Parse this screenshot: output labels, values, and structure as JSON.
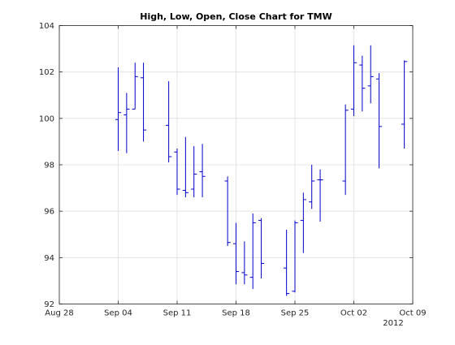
{
  "chart_data": {
    "type": "ohlc",
    "title": "High, Low, Open, Close Chart for TMW",
    "xlabel": "",
    "ylabel": "",
    "x_axis": {
      "type": "date",
      "min": "2012-08-28",
      "max": "2012-10-09",
      "ticks": [
        "2012-08-28",
        "2012-09-04",
        "2012-09-11",
        "2012-09-18",
        "2012-09-25",
        "2012-10-02",
        "2012-10-09"
      ],
      "tick_labels": [
        "Aug 28",
        "Sep 04",
        "Sep 11",
        "Sep 18",
        "Sep 25",
        "Oct 02",
        "Oct 09"
      ],
      "year_label": "2012"
    },
    "y_axis": {
      "min": 92,
      "max": 104,
      "ticks": [
        92,
        94,
        96,
        98,
        100,
        102,
        104
      ],
      "tick_labels": [
        "92",
        "94",
        "96",
        "98",
        "100",
        "102",
        "104"
      ]
    },
    "grid": true,
    "bar_color": "#0000cc",
    "points": [
      {
        "date": "2012-09-04",
        "high": 102.2,
        "low": 98.6,
        "open": 99.95,
        "close": 100.25
      },
      {
        "date": "2012-09-05",
        "high": 101.1,
        "low": 98.5,
        "open": 100.15,
        "close": 100.4
      },
      {
        "date": "2012-09-06",
        "high": 102.4,
        "low": 100.4,
        "open": 100.4,
        "close": 101.8
      },
      {
        "date": "2012-09-07",
        "high": 102.4,
        "low": 99.0,
        "open": 101.75,
        "close": 99.5
      },
      {
        "date": "2012-09-10",
        "high": 101.6,
        "low": 98.1,
        "open": 99.7,
        "close": 98.35
      },
      {
        "date": "2012-09-11",
        "high": 98.7,
        "low": 96.7,
        "open": 98.55,
        "close": 96.95
      },
      {
        "date": "2012-09-12",
        "high": 99.2,
        "low": 96.6,
        "open": 96.9,
        "close": 96.8
      },
      {
        "date": "2012-09-13",
        "high": 98.8,
        "low": 96.6,
        "open": 96.95,
        "close": 97.6
      },
      {
        "date": "2012-09-14",
        "high": 98.9,
        "low": 96.6,
        "open": 97.7,
        "close": 97.5
      },
      {
        "date": "2012-09-17",
        "high": 97.5,
        "low": 94.5,
        "open": 97.3,
        "close": 94.65
      },
      {
        "date": "2012-09-18",
        "high": 95.5,
        "low": 92.85,
        "open": 94.6,
        "close": 93.4
      },
      {
        "date": "2012-09-19",
        "high": 94.7,
        "low": 92.85,
        "open": 93.35,
        "close": 93.25
      },
      {
        "date": "2012-09-20",
        "high": 95.9,
        "low": 92.65,
        "open": 93.15,
        "close": 95.5
      },
      {
        "date": "2012-09-21",
        "high": 95.7,
        "low": 93.1,
        "open": 95.6,
        "close": 93.75
      },
      {
        "date": "2012-09-24",
        "high": 95.2,
        "low": 92.35,
        "open": 93.55,
        "close": 92.45
      },
      {
        "date": "2012-09-25",
        "high": 95.6,
        "low": 92.5,
        "open": 92.55,
        "close": 95.5
      },
      {
        "date": "2012-09-26",
        "high": 96.8,
        "low": 94.2,
        "open": 95.6,
        "close": 96.5
      },
      {
        "date": "2012-09-27",
        "high": 98.0,
        "low": 96.1,
        "open": 96.4,
        "close": 97.3
      },
      {
        "date": "2012-09-28",
        "high": 97.8,
        "low": 95.55,
        "open": 97.35,
        "close": 97.35
      },
      {
        "date": "2012-10-01",
        "high": 100.6,
        "low": 96.7,
        "open": 97.3,
        "close": 100.35
      },
      {
        "date": "2012-10-02",
        "high": 103.15,
        "low": 100.1,
        "open": 100.4,
        "close": 102.4
      },
      {
        "date": "2012-10-03",
        "high": 102.7,
        "low": 100.3,
        "open": 102.3,
        "close": 101.3
      },
      {
        "date": "2012-10-04",
        "high": 103.15,
        "low": 100.65,
        "open": 101.4,
        "close": 101.8
      },
      {
        "date": "2012-10-05",
        "high": 101.95,
        "low": 97.85,
        "open": 101.7,
        "close": 99.65
      },
      {
        "date": "2012-10-08",
        "high": 102.5,
        "low": 98.7,
        "open": 99.75,
        "close": 102.45
      }
    ]
  }
}
